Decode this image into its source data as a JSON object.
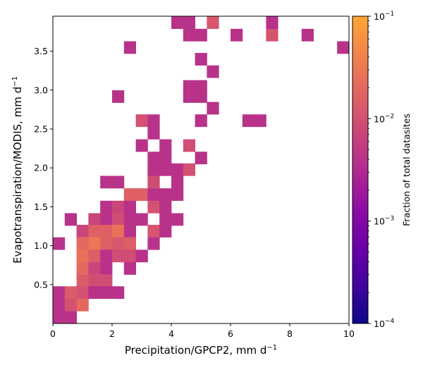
{
  "chart_data": {
    "type": "heatmap",
    "title": "",
    "xlabel": "Precipitation/GPCP2,  mm d",
    "xlabel_sup": "−1",
    "ylabel": "Evapotranspiration/MODIS,  mm d",
    "ylabel_sup": "−1",
    "xlim": [
      0,
      10
    ],
    "ylim": [
      0.0,
      3.95
    ],
    "bin_width_x": 0.4,
    "bin_width_y": 0.158,
    "x_ticks": [
      0,
      2,
      4,
      6,
      8,
      10
    ],
    "x_tick_labels": [
      "0",
      "2",
      "4",
      "6",
      "8",
      "10"
    ],
    "y_ticks": [
      0.5,
      1.0,
      1.5,
      2.0,
      2.5,
      3.0,
      3.5
    ],
    "y_tick_labels": [
      "0.5",
      "1.0",
      "1.5",
      "2.0",
      "2.5",
      "3.0",
      "3.5"
    ],
    "grid": false,
    "colormap": "plasma",
    "color_scale": "log",
    "colorbar": {
      "label": "Fraction of total datasites",
      "min": 0.0001,
      "max": 0.1,
      "ticks": [
        {
          "value": 0.1,
          "base": "10",
          "exp": "−1"
        },
        {
          "value": 0.01,
          "base": "10",
          "exp": "−2"
        },
        {
          "value": 0.001,
          "base": "10",
          "exp": "−3"
        },
        {
          "value": 0.0001,
          "base": "10",
          "exp": "−4"
        }
      ]
    },
    "bins_note": "each cell: [x_bin_start, y_bin_start, fraction]",
    "cells": [
      [
        4.0,
        3.79,
        0.004
      ],
      [
        4.4,
        3.79,
        0.004
      ],
      [
        5.2,
        3.79,
        0.012
      ],
      [
        7.2,
        3.79,
        0.004
      ],
      [
        4.4,
        3.63,
        0.004
      ],
      [
        4.8,
        3.63,
        0.004
      ],
      [
        6.0,
        3.63,
        0.004
      ],
      [
        7.2,
        3.63,
        0.011
      ],
      [
        8.4,
        3.63,
        0.004
      ],
      [
        2.4,
        3.47,
        0.004
      ],
      [
        9.6,
        3.47,
        0.004
      ],
      [
        4.8,
        3.32,
        0.004
      ],
      [
        5.2,
        3.16,
        0.004
      ],
      [
        4.4,
        2.97,
        0.004
      ],
      [
        4.8,
        2.97,
        0.004
      ],
      [
        2.0,
        2.84,
        0.004
      ],
      [
        4.4,
        2.84,
        0.004
      ],
      [
        4.8,
        2.84,
        0.004
      ],
      [
        5.2,
        2.69,
        0.004
      ],
      [
        2.8,
        2.53,
        0.01
      ],
      [
        3.2,
        2.53,
        0.004
      ],
      [
        4.8,
        2.53,
        0.004
      ],
      [
        6.4,
        2.53,
        0.004
      ],
      [
        6.8,
        2.53,
        0.004
      ],
      [
        3.2,
        2.37,
        0.004
      ],
      [
        2.8,
        2.21,
        0.004
      ],
      [
        3.6,
        2.21,
        0.004
      ],
      [
        4.4,
        2.21,
        0.009
      ],
      [
        3.2,
        2.05,
        0.004
      ],
      [
        3.6,
        2.05,
        0.004
      ],
      [
        4.8,
        2.05,
        0.004
      ],
      [
        3.2,
        1.9,
        0.004
      ],
      [
        3.6,
        1.9,
        0.004
      ],
      [
        4.0,
        1.9,
        0.004
      ],
      [
        4.4,
        1.9,
        0.01
      ],
      [
        1.6,
        1.74,
        0.004
      ],
      [
        2.0,
        1.74,
        0.004
      ],
      [
        3.2,
        1.74,
        0.009
      ],
      [
        4.0,
        1.74,
        0.004
      ],
      [
        2.4,
        1.58,
        0.016
      ],
      [
        2.8,
        1.58,
        0.016
      ],
      [
        3.2,
        1.58,
        0.004
      ],
      [
        3.6,
        1.58,
        0.004
      ],
      [
        4.0,
        1.58,
        0.004
      ],
      [
        1.6,
        1.42,
        0.004
      ],
      [
        2.0,
        1.42,
        0.007
      ],
      [
        2.4,
        1.42,
        0.004
      ],
      [
        3.2,
        1.42,
        0.01
      ],
      [
        3.6,
        1.42,
        0.004
      ],
      [
        0.4,
        1.26,
        0.004
      ],
      [
        1.2,
        1.26,
        0.007
      ],
      [
        1.6,
        1.26,
        0.004
      ],
      [
        2.0,
        1.26,
        0.009
      ],
      [
        2.4,
        1.26,
        0.004
      ],
      [
        2.8,
        1.26,
        0.004
      ],
      [
        3.6,
        1.26,
        0.004
      ],
      [
        4.0,
        1.26,
        0.004
      ],
      [
        0.8,
        1.11,
        0.007
      ],
      [
        1.2,
        1.11,
        0.016
      ],
      [
        1.6,
        1.11,
        0.016
      ],
      [
        2.0,
        1.11,
        0.025
      ],
      [
        2.4,
        1.11,
        0.004
      ],
      [
        3.2,
        1.11,
        0.011
      ],
      [
        3.6,
        1.11,
        0.004
      ],
      [
        0.0,
        0.95,
        0.004
      ],
      [
        0.8,
        0.95,
        0.02
      ],
      [
        1.2,
        0.95,
        0.03
      ],
      [
        1.6,
        0.95,
        0.016
      ],
      [
        2.0,
        0.95,
        0.012
      ],
      [
        2.4,
        0.95,
        0.015
      ],
      [
        3.2,
        0.95,
        0.004
      ],
      [
        0.8,
        0.79,
        0.025
      ],
      [
        1.2,
        0.79,
        0.015
      ],
      [
        1.6,
        0.79,
        0.004
      ],
      [
        2.0,
        0.79,
        0.009
      ],
      [
        2.4,
        0.79,
        0.009
      ],
      [
        2.8,
        0.79,
        0.004
      ],
      [
        0.8,
        0.63,
        0.02
      ],
      [
        1.2,
        0.63,
        0.007
      ],
      [
        1.6,
        0.63,
        0.004
      ],
      [
        2.4,
        0.63,
        0.004
      ],
      [
        0.8,
        0.47,
        0.014
      ],
      [
        1.2,
        0.47,
        0.009
      ],
      [
        1.6,
        0.47,
        0.009
      ],
      [
        0.0,
        0.32,
        0.004
      ],
      [
        0.4,
        0.32,
        0.014
      ],
      [
        0.8,
        0.32,
        0.01
      ],
      [
        1.2,
        0.32,
        0.004
      ],
      [
        1.6,
        0.32,
        0.004
      ],
      [
        2.0,
        0.32,
        0.004
      ],
      [
        0.0,
        0.16,
        0.004
      ],
      [
        0.4,
        0.16,
        0.01
      ],
      [
        0.8,
        0.16,
        0.02
      ],
      [
        0.0,
        0.0,
        0.004
      ],
      [
        0.4,
        0.0,
        0.004
      ]
    ]
  }
}
